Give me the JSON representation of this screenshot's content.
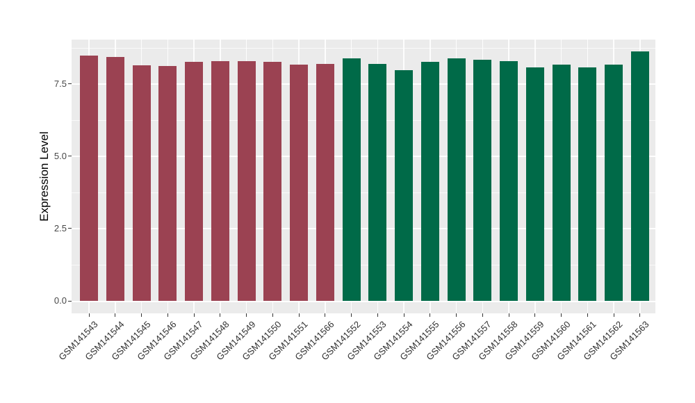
{
  "chart_data": {
    "type": "bar",
    "title": "",
    "xlabel": "",
    "ylabel": "Expression Level",
    "ylim": [
      0,
      9.03
    ],
    "ytick_labels": [
      "0.0",
      "2.5",
      "5.0",
      "7.5"
    ],
    "ytick_values": [
      0,
      2.5,
      5,
      7.5
    ],
    "ytick_minor_values": [
      1.25,
      3.75,
      6.25,
      8.75
    ],
    "grid": "on",
    "legend_position": "none",
    "panel_background": "#EBEBEB",
    "gridline_color": "#FFFFFF",
    "categories": [
      "GSM141543",
      "GSM141544",
      "GSM141545",
      "GSM141546",
      "GSM141547",
      "GSM141548",
      "GSM141549",
      "GSM141550",
      "GSM141551",
      "GSM141566",
      "GSM141552",
      "GSM141553",
      "GSM141554",
      "GSM141555",
      "GSM141556",
      "GSM141557",
      "GSM141558",
      "GSM141559",
      "GSM141560",
      "GSM141561",
      "GSM141562",
      "GSM141563"
    ],
    "values": [
      8.48,
      8.43,
      8.14,
      8.12,
      8.26,
      8.28,
      8.28,
      8.26,
      8.16,
      8.19,
      8.38,
      8.18,
      7.98,
      8.26,
      8.39,
      8.33,
      8.28,
      8.08,
      8.16,
      8.06,
      8.16,
      8.61
    ],
    "bar_groups": [
      "group1",
      "group1",
      "group1",
      "group1",
      "group1",
      "group1",
      "group1",
      "group1",
      "group1",
      "group1",
      "group2",
      "group2",
      "group2",
      "group2",
      "group2",
      "group2",
      "group2",
      "group2",
      "group2",
      "group2",
      "group2",
      "group2"
    ],
    "group_colors": {
      "group1": "#9B4252",
      "group2": "#006A48"
    }
  }
}
